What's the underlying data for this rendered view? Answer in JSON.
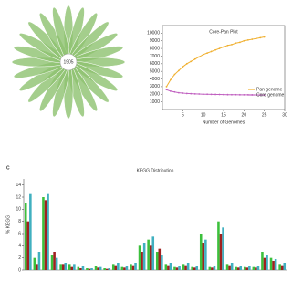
{
  "chart_data": [
    {
      "type": "flower",
      "center": 1905,
      "color": "#8dc26f"
    },
    {
      "type": "line",
      "title": "Core-Pan Plot",
      "x_label": "Number of Genomes",
      "x": [
        1,
        2,
        3,
        4,
        5,
        6,
        7,
        8,
        9,
        10,
        11,
        12,
        13,
        14,
        15,
        16,
        17,
        18,
        19,
        20,
        21,
        22,
        23,
        24,
        25
      ],
      "xlim": [
        0,
        30
      ],
      "xticks": [
        5,
        10,
        15,
        20,
        25,
        30
      ],
      "ylim": [
        0,
        11000
      ],
      "yticks": [
        1000,
        2000,
        3000,
        4000,
        5000,
        6000,
        7000,
        8000,
        9000,
        10000
      ],
      "series": [
        {
          "name": "Pan genome",
          "color": "#f0b030",
          "values": [
            3000,
            3900,
            4600,
            5100,
            5600,
            6000,
            6300,
            6600,
            6900,
            7200,
            7400,
            7600,
            7800,
            8000,
            8200,
            8400,
            8500,
            8700,
            8800,
            9000,
            9100,
            9200,
            9300,
            9400,
            9500
          ]
        },
        {
          "name": "Core genome",
          "color": "#c060c0",
          "values": [
            2600,
            2400,
            2300,
            2200,
            2150,
            2100,
            2080,
            2050,
            2030,
            2010,
            2000,
            1990,
            1980,
            1970,
            1960,
            1950,
            1945,
            1940,
            1935,
            1930,
            1925,
            1920,
            1915,
            1910,
            1905
          ]
        }
      ]
    },
    {
      "type": "bar",
      "panel": "C",
      "title": "KEGG Distribution",
      "y_label": "% KEGG",
      "ylim": [
        0,
        15
      ],
      "yticks": [
        0,
        2,
        4,
        6,
        8,
        10,
        12,
        14
      ],
      "categories": [
        null,
        null,
        null,
        null,
        null,
        null,
        null,
        null,
        null,
        null,
        null,
        null,
        null,
        null,
        null,
        null,
        null,
        null,
        null,
        null,
        null,
        null,
        null,
        null,
        null,
        null,
        null,
        null,
        null,
        null
      ],
      "series": [
        {
          "color": "#3cc03c",
          "values": [
            11,
            2,
            12,
            2.5,
            1,
            1,
            0.5,
            0.3,
            0.6,
            0.3,
            1,
            0.5,
            1,
            4,
            5,
            3,
            1,
            0.5,
            1,
            0.5,
            6,
            0.5,
            8,
            1,
            0.5,
            0.5,
            0.5,
            3,
            2,
            1
          ]
        },
        {
          "color": "#a02020",
          "values": [
            8,
            1,
            11.5,
            3,
            1,
            0.5,
            0.3,
            0.2,
            0.4,
            0.2,
            0.8,
            0.4,
            0.8,
            3,
            4,
            3.5,
            0.8,
            0.4,
            0.8,
            0.4,
            4.5,
            0.4,
            6,
            0.8,
            0.4,
            0.4,
            0.4,
            2,
            1.5,
            0.8
          ]
        },
        {
          "color": "#40b0c0",
          "values": [
            12.5,
            3,
            12.5,
            2,
            1.2,
            1,
            0.6,
            0.3,
            0.5,
            0.3,
            1.2,
            0.6,
            1.2,
            4.5,
            5.5,
            2.5,
            1.2,
            0.6,
            1.2,
            0.6,
            5,
            0.6,
            7,
            1.2,
            0.6,
            0.6,
            0.6,
            2.5,
            1.8,
            1.2
          ]
        }
      ]
    }
  ]
}
